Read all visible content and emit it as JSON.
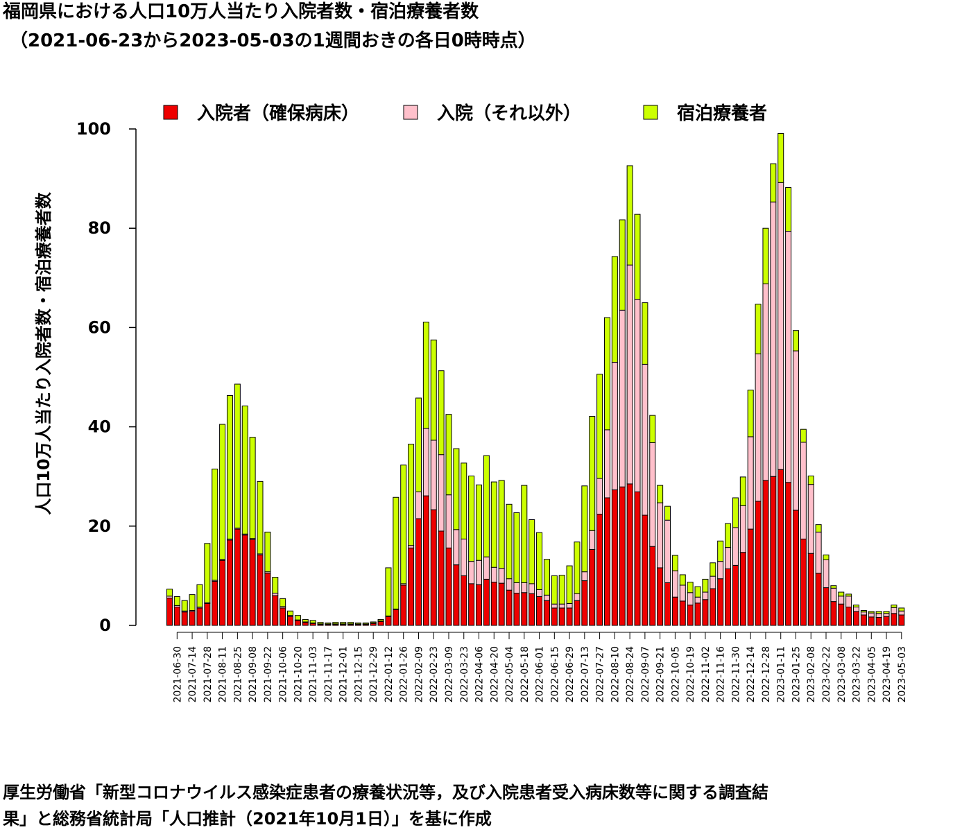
{
  "title_line1": "福岡県における人口10万人当たり入院者数・宿泊療養者数",
  "title_line2": "（2021-06-23から2023-05-03の1週間おきの各日0時時点）",
  "source_line1": "厚生労働省「新型コロナウイルス感染症患者の療養状況等，及び入院患者受入病床数等に関する調査結",
  "source_line2": "果」と総務省統計局「人口推計（2021年10月1日）」を基に作成",
  "chart_data": {
    "type": "bar",
    "stacked": true,
    "ylabel": "人口10万人当たり入院者数・宿泊療養者数",
    "ylim": [
      0,
      100
    ],
    "yticks": [
      0,
      20,
      40,
      60,
      80,
      100
    ],
    "legend_position": "top",
    "categories": [
      "2021-06-23",
      "2021-06-30",
      "2021-07-07",
      "2021-07-14",
      "2021-07-21",
      "2021-07-28",
      "2021-08-04",
      "2021-08-11",
      "2021-08-18",
      "2021-08-25",
      "2021-09-01",
      "2021-09-08",
      "2021-09-15",
      "2021-09-22",
      "2021-09-29",
      "2021-10-06",
      "2021-10-13",
      "2021-10-20",
      "2021-10-27",
      "2021-11-03",
      "2021-11-10",
      "2021-11-17",
      "2021-11-24",
      "2021-12-01",
      "2021-12-08",
      "2021-12-15",
      "2021-12-22",
      "2021-12-29",
      "2022-01-05",
      "2022-01-12",
      "2022-01-19",
      "2022-01-26",
      "2022-02-02",
      "2022-02-09",
      "2022-02-16",
      "2022-02-23",
      "2022-03-02",
      "2022-03-09",
      "2022-03-16",
      "2022-03-23",
      "2022-03-30",
      "2022-04-06",
      "2022-04-13",
      "2022-04-20",
      "2022-04-27",
      "2022-05-04",
      "2022-05-11",
      "2022-05-18",
      "2022-05-25",
      "2022-06-01",
      "2022-06-08",
      "2022-06-15",
      "2022-06-22",
      "2022-06-29",
      "2022-07-06",
      "2022-07-13",
      "2022-07-20",
      "2022-07-27",
      "2022-08-03",
      "2022-08-10",
      "2022-08-17",
      "2022-08-24",
      "2022-08-31",
      "2022-09-07",
      "2022-09-14",
      "2022-09-21",
      "2022-09-28",
      "2022-10-05",
      "2022-10-12",
      "2022-10-19",
      "2022-10-26",
      "2022-11-02",
      "2022-11-09",
      "2022-11-16",
      "2022-11-23",
      "2022-11-30",
      "2022-12-07",
      "2022-12-14",
      "2022-12-21",
      "2022-12-28",
      "2023-01-04",
      "2023-01-11",
      "2023-01-18",
      "2023-01-25",
      "2023-02-01",
      "2023-02-08",
      "2023-02-15",
      "2023-02-22",
      "2023-03-01",
      "2023-03-08",
      "2023-03-15",
      "2023-03-22",
      "2023-03-29",
      "2023-04-05",
      "2023-04-12",
      "2023-04-19",
      "2023-04-26",
      "2023-05-03"
    ],
    "tick_labels_shown": [
      "2021-06-30",
      "2021-07-14",
      "2021-07-28",
      "2021-08-11",
      "2021-08-25",
      "2021-09-08",
      "2021-09-22",
      "2021-10-06",
      "2021-10-20",
      "2021-11-03",
      "2021-11-17",
      "2021-12-01",
      "2021-12-15",
      "2021-12-29",
      "2022-01-12",
      "2022-01-26",
      "2022-02-09",
      "2022-02-23",
      "2022-03-09",
      "2022-03-23",
      "2022-04-06",
      "2022-04-20",
      "2022-05-04",
      "2022-05-18",
      "2022-06-01",
      "2022-06-15",
      "2022-06-29",
      "2022-07-13",
      "2022-07-27",
      "2022-08-10",
      "2022-08-24",
      "2022-09-07",
      "2022-09-21",
      "2022-10-05",
      "2022-10-19",
      "2022-11-02",
      "2022-11-16",
      "2022-11-30",
      "2022-12-14",
      "2022-12-28",
      "2023-01-11",
      "2023-01-25",
      "2023-02-08",
      "2023-02-22",
      "2023-03-08",
      "2023-03-22",
      "2023-04-05",
      "2023-04-19",
      "2023-05-03"
    ],
    "series": [
      {
        "name": "入院者（確保病床）",
        "color": "#ee0000",
        "values": [
          5.5,
          3.7,
          2.7,
          2.8,
          3.5,
          4.4,
          8.9,
          13.1,
          17.2,
          19.4,
          18.2,
          17.3,
          14.2,
          10.5,
          6.0,
          3.5,
          1.8,
          1.0,
          0.6,
          0.4,
          0.2,
          0.2,
          0.2,
          0.2,
          0.2,
          0.2,
          0.2,
          0.4,
          0.8,
          1.8,
          3.2,
          8.1,
          15.6,
          21.5,
          26.1,
          23.3,
          19.0,
          15.6,
          12.2,
          10.0,
          8.4,
          8.2,
          9.3,
          8.7,
          8.5,
          7.1,
          6.5,
          6.6,
          6.4,
          5.8,
          5.0,
          3.5,
          3.5,
          3.5,
          5.0,
          9.0,
          15.3,
          22.4,
          25.7,
          27.3,
          27.9,
          28.5,
          26.9,
          22.2,
          15.9,
          11.6,
          8.6,
          5.7,
          4.9,
          4.1,
          4.5,
          5.2,
          7.4,
          9.4,
          11.4,
          12.1,
          14.7,
          19.4,
          25.0,
          29.2,
          30.0,
          31.4,
          28.8,
          23.2,
          17.4,
          14.5,
          10.5,
          7.6,
          4.8,
          4.3,
          3.7,
          2.8,
          2.1,
          1.7,
          1.6,
          1.8,
          2.4,
          2.1
        ]
      },
      {
        "name": "入院（それ以外）",
        "color": "#ffc0cb",
        "values": [
          0.4,
          0.3,
          0.2,
          0.2,
          0.2,
          0.2,
          0.2,
          0.2,
          0.2,
          0.2,
          0.2,
          0.2,
          0.2,
          0.3,
          0.5,
          0.3,
          0.2,
          0.1,
          0.1,
          0.1,
          0.1,
          0.1,
          0.1,
          0.1,
          0.1,
          0.1,
          0.1,
          0.1,
          0.1,
          0.1,
          0.1,
          0.3,
          0.5,
          5.4,
          13.6,
          14.0,
          15.4,
          10.7,
          7.1,
          7.4,
          4.5,
          4.9,
          4.5,
          3.0,
          3.0,
          2.3,
          2.1,
          2.0,
          2.0,
          1.4,
          1.1,
          0.8,
          0.8,
          0.9,
          1.4,
          1.8,
          3.8,
          7.2,
          13.7,
          25.7,
          35.6,
          44.1,
          38.8,
          30.4,
          20.9,
          13.1,
          12.6,
          5.3,
          3.2,
          2.5,
          1.2,
          1.5,
          2.5,
          3.5,
          4.3,
          7.6,
          9.4,
          18.6,
          29.7,
          39.6,
          55.3,
          57.8,
          50.6,
          32.1,
          19.5,
          13.9,
          8.3,
          5.6,
          2.7,
          1.6,
          2.2,
          0.9,
          0.6,
          0.8,
          0.8,
          0.6,
          1.2,
          0.8
        ]
      },
      {
        "name": "宿泊療養者",
        "color": "#ccff00",
        "values": [
          1.4,
          1.8,
          2.1,
          3.2,
          4.5,
          11.9,
          22.4,
          27.2,
          28.9,
          29.0,
          25.8,
          20.4,
          14.6,
          8.0,
          3.2,
          1.6,
          0.9,
          0.9,
          0.5,
          0.5,
          0.3,
          0.2,
          0.3,
          0.3,
          0.3,
          0.2,
          0.2,
          0.2,
          0.3,
          9.7,
          22.5,
          23.9,
          20.4,
          18.9,
          21.4,
          20.2,
          16.9,
          16.2,
          16.3,
          15.3,
          17.2,
          15.2,
          20.4,
          17.2,
          17.7,
          15.0,
          14.1,
          19.6,
          12.9,
          11.5,
          7.2,
          5.7,
          5.8,
          7.6,
          10.4,
          17.3,
          23.0,
          21.0,
          22.6,
          21.3,
          18.2,
          20.0,
          17.1,
          12.4,
          5.5,
          3.5,
          2.8,
          3.1,
          2.1,
          2.1,
          2.1,
          2.6,
          2.7,
          4.1,
          4.8,
          6.0,
          5.8,
          9.4,
          10.0,
          11.2,
          7.7,
          9.9,
          8.8,
          4.1,
          2.6,
          1.7,
          1.5,
          1.0,
          0.5,
          0.8,
          0.4,
          0.4,
          0.3,
          0.3,
          0.4,
          0.4,
          0.5,
          0.6
        ]
      }
    ]
  }
}
